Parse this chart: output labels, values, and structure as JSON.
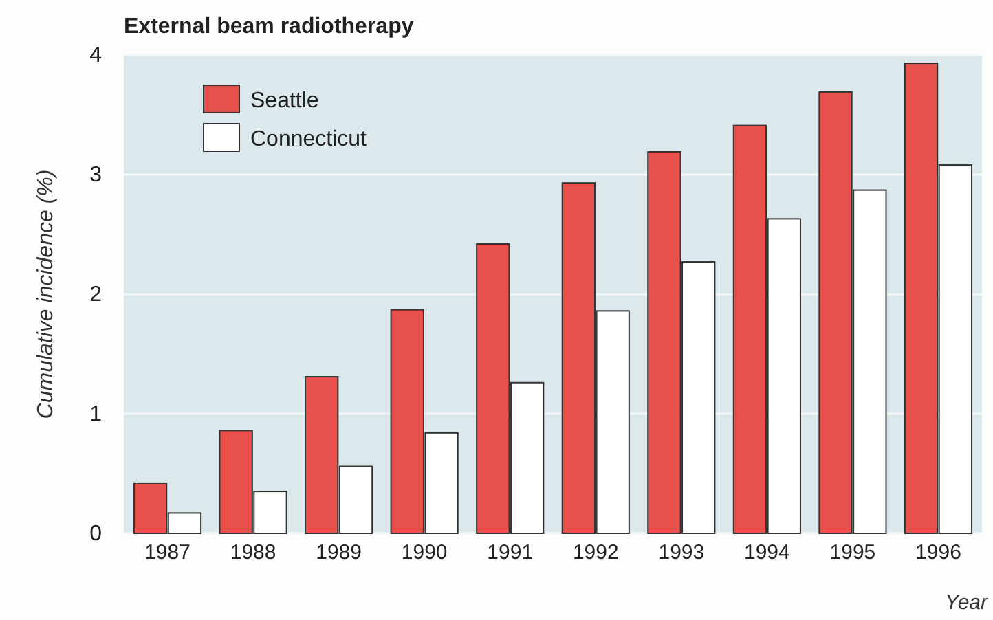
{
  "chart_data": {
    "type": "bar",
    "title": "External beam radiotherapy",
    "xlabel": "Year",
    "ylabel": "Cumulative incidence (%)",
    "categories": [
      "1987",
      "1988",
      "1989",
      "1990",
      "1991",
      "1992",
      "1993",
      "1994",
      "1995",
      "1996"
    ],
    "series": [
      {
        "name": "Seattle",
        "color": "#e8504c",
        "values": [
          0.42,
          0.86,
          1.31,
          1.87,
          2.42,
          2.93,
          3.19,
          3.41,
          3.69,
          3.93
        ]
      },
      {
        "name": "Connecticut",
        "color": "#ffffff",
        "values": [
          0.17,
          0.35,
          0.56,
          0.84,
          1.26,
          1.86,
          2.27,
          2.63,
          2.87,
          3.08
        ]
      }
    ],
    "ylim": [
      0,
      4
    ],
    "yticks": [
      0,
      1,
      2,
      3,
      4
    ],
    "grid": "y",
    "legend": "top left"
  }
}
